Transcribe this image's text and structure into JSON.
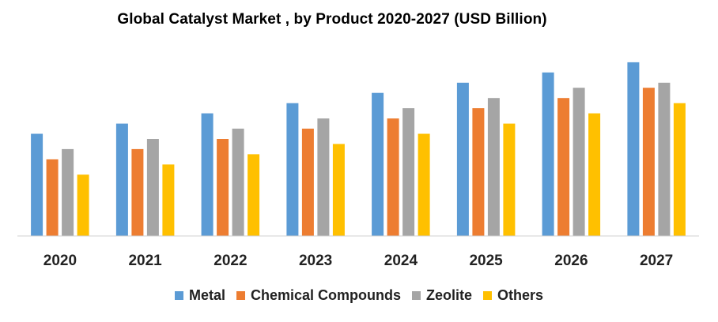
{
  "chart_data": {
    "type": "bar",
    "title": "Global Catalyst Market , by Product 2020-2027 (USD Billion)",
    "xlabel": "",
    "ylabel": "",
    "categories": [
      "2020",
      "2021",
      "2022",
      "2023",
      "2024",
      "2025",
      "2026",
      "2027"
    ],
    "ylim": [
      0,
      20
    ],
    "grid": false,
    "legend_position": "bottom",
    "series": [
      {
        "name": "Metal",
        "color": "#5B9BD5",
        "values": [
          10.0,
          11.0,
          12.0,
          13.0,
          14.0,
          15.0,
          16.0,
          17.0
        ]
      },
      {
        "name": "Chemical Compounds",
        "color": "#ED7D31",
        "values": [
          7.5,
          8.5,
          9.5,
          10.5,
          11.5,
          12.5,
          13.5,
          14.5
        ]
      },
      {
        "name": "Zeolite",
        "color": "#A5A5A5",
        "values": [
          8.5,
          9.5,
          10.5,
          11.5,
          12.5,
          13.5,
          14.5,
          15.0
        ]
      },
      {
        "name": "Others",
        "color": "#FFC000",
        "values": [
          6.0,
          7.0,
          8.0,
          9.0,
          10.0,
          11.0,
          12.0,
          13.0
        ]
      }
    ]
  }
}
